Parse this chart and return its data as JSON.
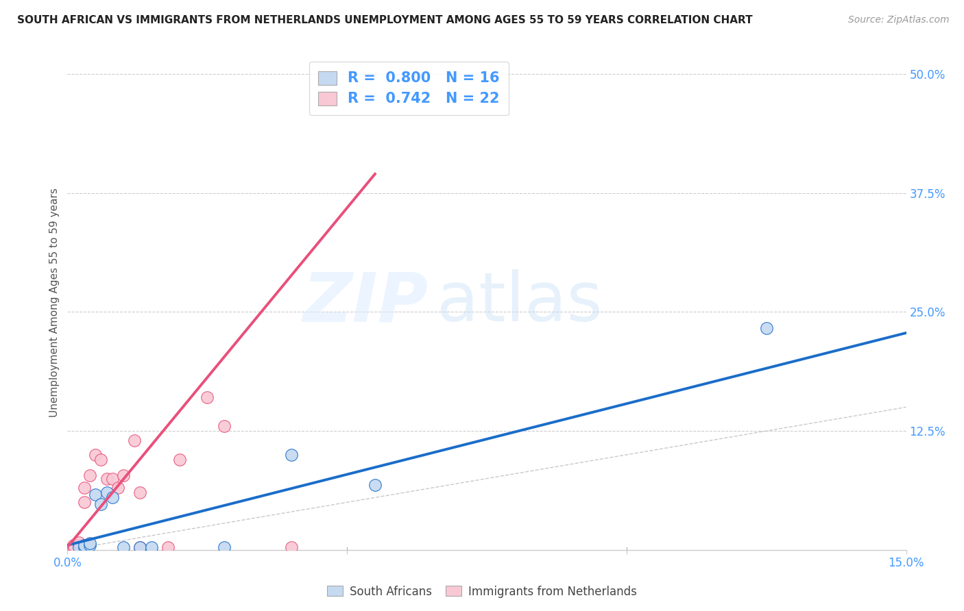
{
  "title": "SOUTH AFRICAN VS IMMIGRANTS FROM NETHERLANDS UNEMPLOYMENT AMONG AGES 55 TO 59 YEARS CORRELATION CHART",
  "source": "Source: ZipAtlas.com",
  "ylabel": "Unemployment Among Ages 55 to 59 years",
  "xlim": [
    0.0,
    0.15
  ],
  "ylim": [
    0.0,
    0.52
  ],
  "grid_color": "#cccccc",
  "background_color": "#ffffff",
  "diagonal_line_color": "#bbbbbb",
  "south_africans": {
    "color": "#c5d9f1",
    "R": 0.8,
    "N": 16,
    "line_color": "#1a6dc9",
    "scatter_x": [
      0.002,
      0.003,
      0.003,
      0.004,
      0.004,
      0.005,
      0.006,
      0.007,
      0.008,
      0.01,
      0.013,
      0.015,
      0.028,
      0.04,
      0.055,
      0.125
    ],
    "scatter_y": [
      0.003,
      0.003,
      0.005,
      0.005,
      0.007,
      0.058,
      0.048,
      0.06,
      0.055,
      0.003,
      0.003,
      0.003,
      0.003,
      0.1,
      0.068,
      0.233
    ],
    "trend_x": [
      0.0,
      0.15
    ],
    "trend_y": [
      0.005,
      0.228
    ]
  },
  "netherlands": {
    "color": "#f8c8d4",
    "R": 0.742,
    "N": 22,
    "line_color": "#e8507a",
    "scatter_x": [
      0.001,
      0.001,
      0.002,
      0.002,
      0.003,
      0.003,
      0.003,
      0.004,
      0.005,
      0.006,
      0.007,
      0.008,
      0.009,
      0.01,
      0.012,
      0.013,
      0.013,
      0.018,
      0.02,
      0.025,
      0.028,
      0.04
    ],
    "scatter_y": [
      0.003,
      0.005,
      0.005,
      0.008,
      0.005,
      0.05,
      0.065,
      0.078,
      0.1,
      0.095,
      0.075,
      0.075,
      0.065,
      0.078,
      0.115,
      0.06,
      0.003,
      0.003,
      0.095,
      0.16,
      0.13,
      0.003
    ],
    "trend_x": [
      0.0,
      0.055
    ],
    "trend_y": [
      0.003,
      0.395
    ]
  },
  "watermark_zip": "ZIP",
  "watermark_atlas": "atlas",
  "marker_size": 160
}
